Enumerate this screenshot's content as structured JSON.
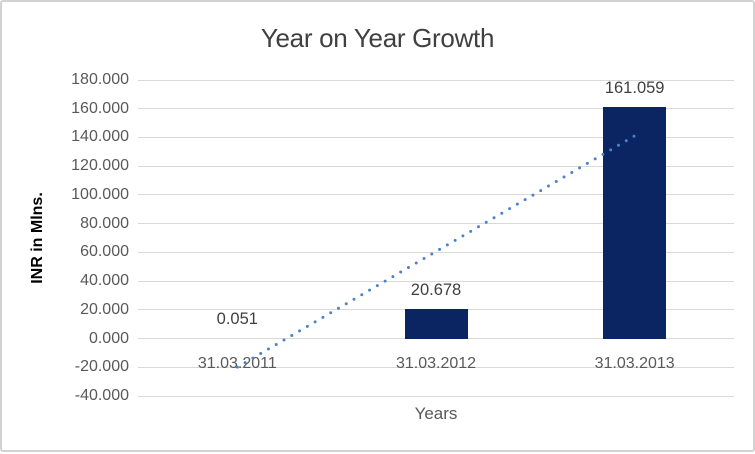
{
  "chart_data": {
    "type": "bar",
    "title": "Year on Year Growth",
    "xlabel": "Years",
    "ylabel": "INR in Mlns.",
    "categories": [
      "31.03.2011",
      "31.03.2012",
      "31.03.2013"
    ],
    "values": [
      0.051,
      20.678,
      161.059
    ],
    "data_labels": [
      "0.051",
      "20.678",
      "161.059"
    ],
    "ylim": [
      -40,
      180
    ],
    "ytick_step": 20,
    "ytick_labels": [
      "180.000",
      "160.000",
      "140.000",
      "120.000",
      "100.000",
      "80.000",
      "60.000",
      "40.000",
      "20.000",
      "0.000",
      "-20.000",
      "-40.000"
    ],
    "grid": true,
    "legend": "none",
    "trendline": {
      "style": "dotted",
      "start_value": -19.9,
      "end_value": 141.1
    }
  },
  "colors": {
    "bar_fill": "#0b2563",
    "trendline": "#4b82c8",
    "gridline": "#d9d9d9",
    "title_text": "#404040",
    "axis_text": "#595959",
    "data_label_text": "#404040",
    "chart_border": "#d2d2d2",
    "background": "#ffffff"
  }
}
